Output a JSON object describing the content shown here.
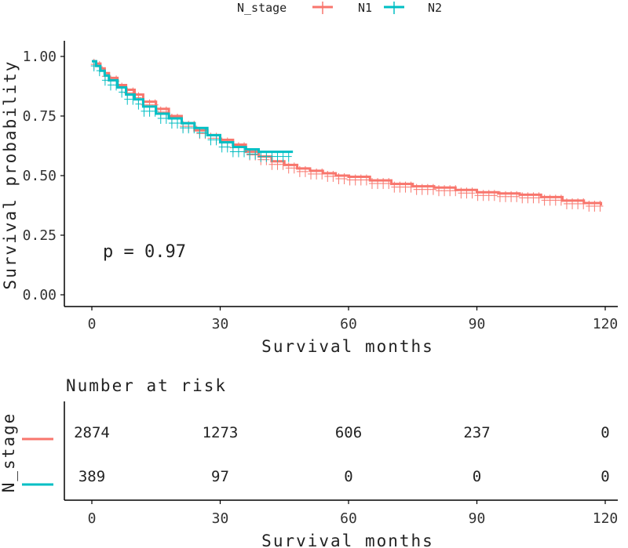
{
  "chart_data": {
    "type": "line",
    "subtype": "kaplan-meier",
    "title": "",
    "legend": {
      "title": "N_stage",
      "placement": "top",
      "entries": [
        {
          "label": "N1",
          "color": "#F8766D"
        },
        {
          "label": "N2",
          "color": "#00BFC4"
        }
      ]
    },
    "xlabel": "Survival months",
    "ylabel": "Survival probability",
    "xlim": [
      0,
      120
    ],
    "ylim": [
      0,
      1
    ],
    "x_ticks": [
      0,
      30,
      60,
      90,
      120
    ],
    "y_ticks": [
      "0.00",
      "0.25",
      "0.50",
      "0.75",
      "1.00"
    ],
    "y_tick_values": [
      0,
      0.25,
      0.5,
      0.75,
      1.0
    ],
    "annotation": "p = 0.97",
    "grid": false,
    "series": [
      {
        "name": "N1",
        "color": "#F8766D",
        "points": [
          [
            0,
            0.98
          ],
          [
            1,
            0.97
          ],
          [
            2,
            0.95
          ],
          [
            3,
            0.93
          ],
          [
            4,
            0.91
          ],
          [
            6,
            0.88
          ],
          [
            8,
            0.86
          ],
          [
            10,
            0.84
          ],
          [
            12,
            0.81
          ],
          [
            15,
            0.78
          ],
          [
            18,
            0.75
          ],
          [
            21,
            0.72
          ],
          [
            24,
            0.69
          ],
          [
            27,
            0.67
          ],
          [
            30,
            0.65
          ],
          [
            33,
            0.63
          ],
          [
            36,
            0.6
          ],
          [
            39,
            0.58
          ],
          [
            42,
            0.56
          ],
          [
            45,
            0.545
          ],
          [
            48,
            0.53
          ],
          [
            51,
            0.52
          ],
          [
            54,
            0.51
          ],
          [
            57,
            0.5
          ],
          [
            60,
            0.495
          ],
          [
            65,
            0.48
          ],
          [
            70,
            0.465
          ],
          [
            75,
            0.455
          ],
          [
            80,
            0.45
          ],
          [
            85,
            0.44
          ],
          [
            90,
            0.43
          ],
          [
            95,
            0.425
          ],
          [
            100,
            0.42
          ],
          [
            105,
            0.41
          ],
          [
            110,
            0.395
          ],
          [
            115,
            0.385
          ],
          [
            119,
            0.375
          ]
        ],
        "censor_every": 1
      },
      {
        "name": "N2",
        "color": "#00BFC4",
        "points": [
          [
            0,
            0.98
          ],
          [
            1,
            0.96
          ],
          [
            2,
            0.94
          ],
          [
            3,
            0.92
          ],
          [
            4,
            0.9
          ],
          [
            6,
            0.87
          ],
          [
            8,
            0.84
          ],
          [
            10,
            0.82
          ],
          [
            12,
            0.79
          ],
          [
            15,
            0.76
          ],
          [
            18,
            0.74
          ],
          [
            21,
            0.72
          ],
          [
            24,
            0.7
          ],
          [
            27,
            0.67
          ],
          [
            30,
            0.64
          ],
          [
            33,
            0.62
          ],
          [
            36,
            0.61
          ],
          [
            39,
            0.6
          ],
          [
            42,
            0.6
          ],
          [
            45,
            0.6
          ],
          [
            47,
            0.6
          ]
        ],
        "censor_every": 1
      }
    ],
    "risk_table": {
      "title": "Number at risk",
      "xlabel": "Survival months",
      "ylabel": "N_stage",
      "times": [
        0,
        30,
        60,
        90,
        120
      ],
      "rows": [
        {
          "name": "N1",
          "color": "#F8766D",
          "values": [
            "2874",
            "1273",
            "606",
            "237",
            "0"
          ]
        },
        {
          "name": "N2",
          "color": "#00BFC4",
          "values": [
            "389",
            "97",
            "0",
            "0",
            "0"
          ]
        }
      ]
    }
  }
}
